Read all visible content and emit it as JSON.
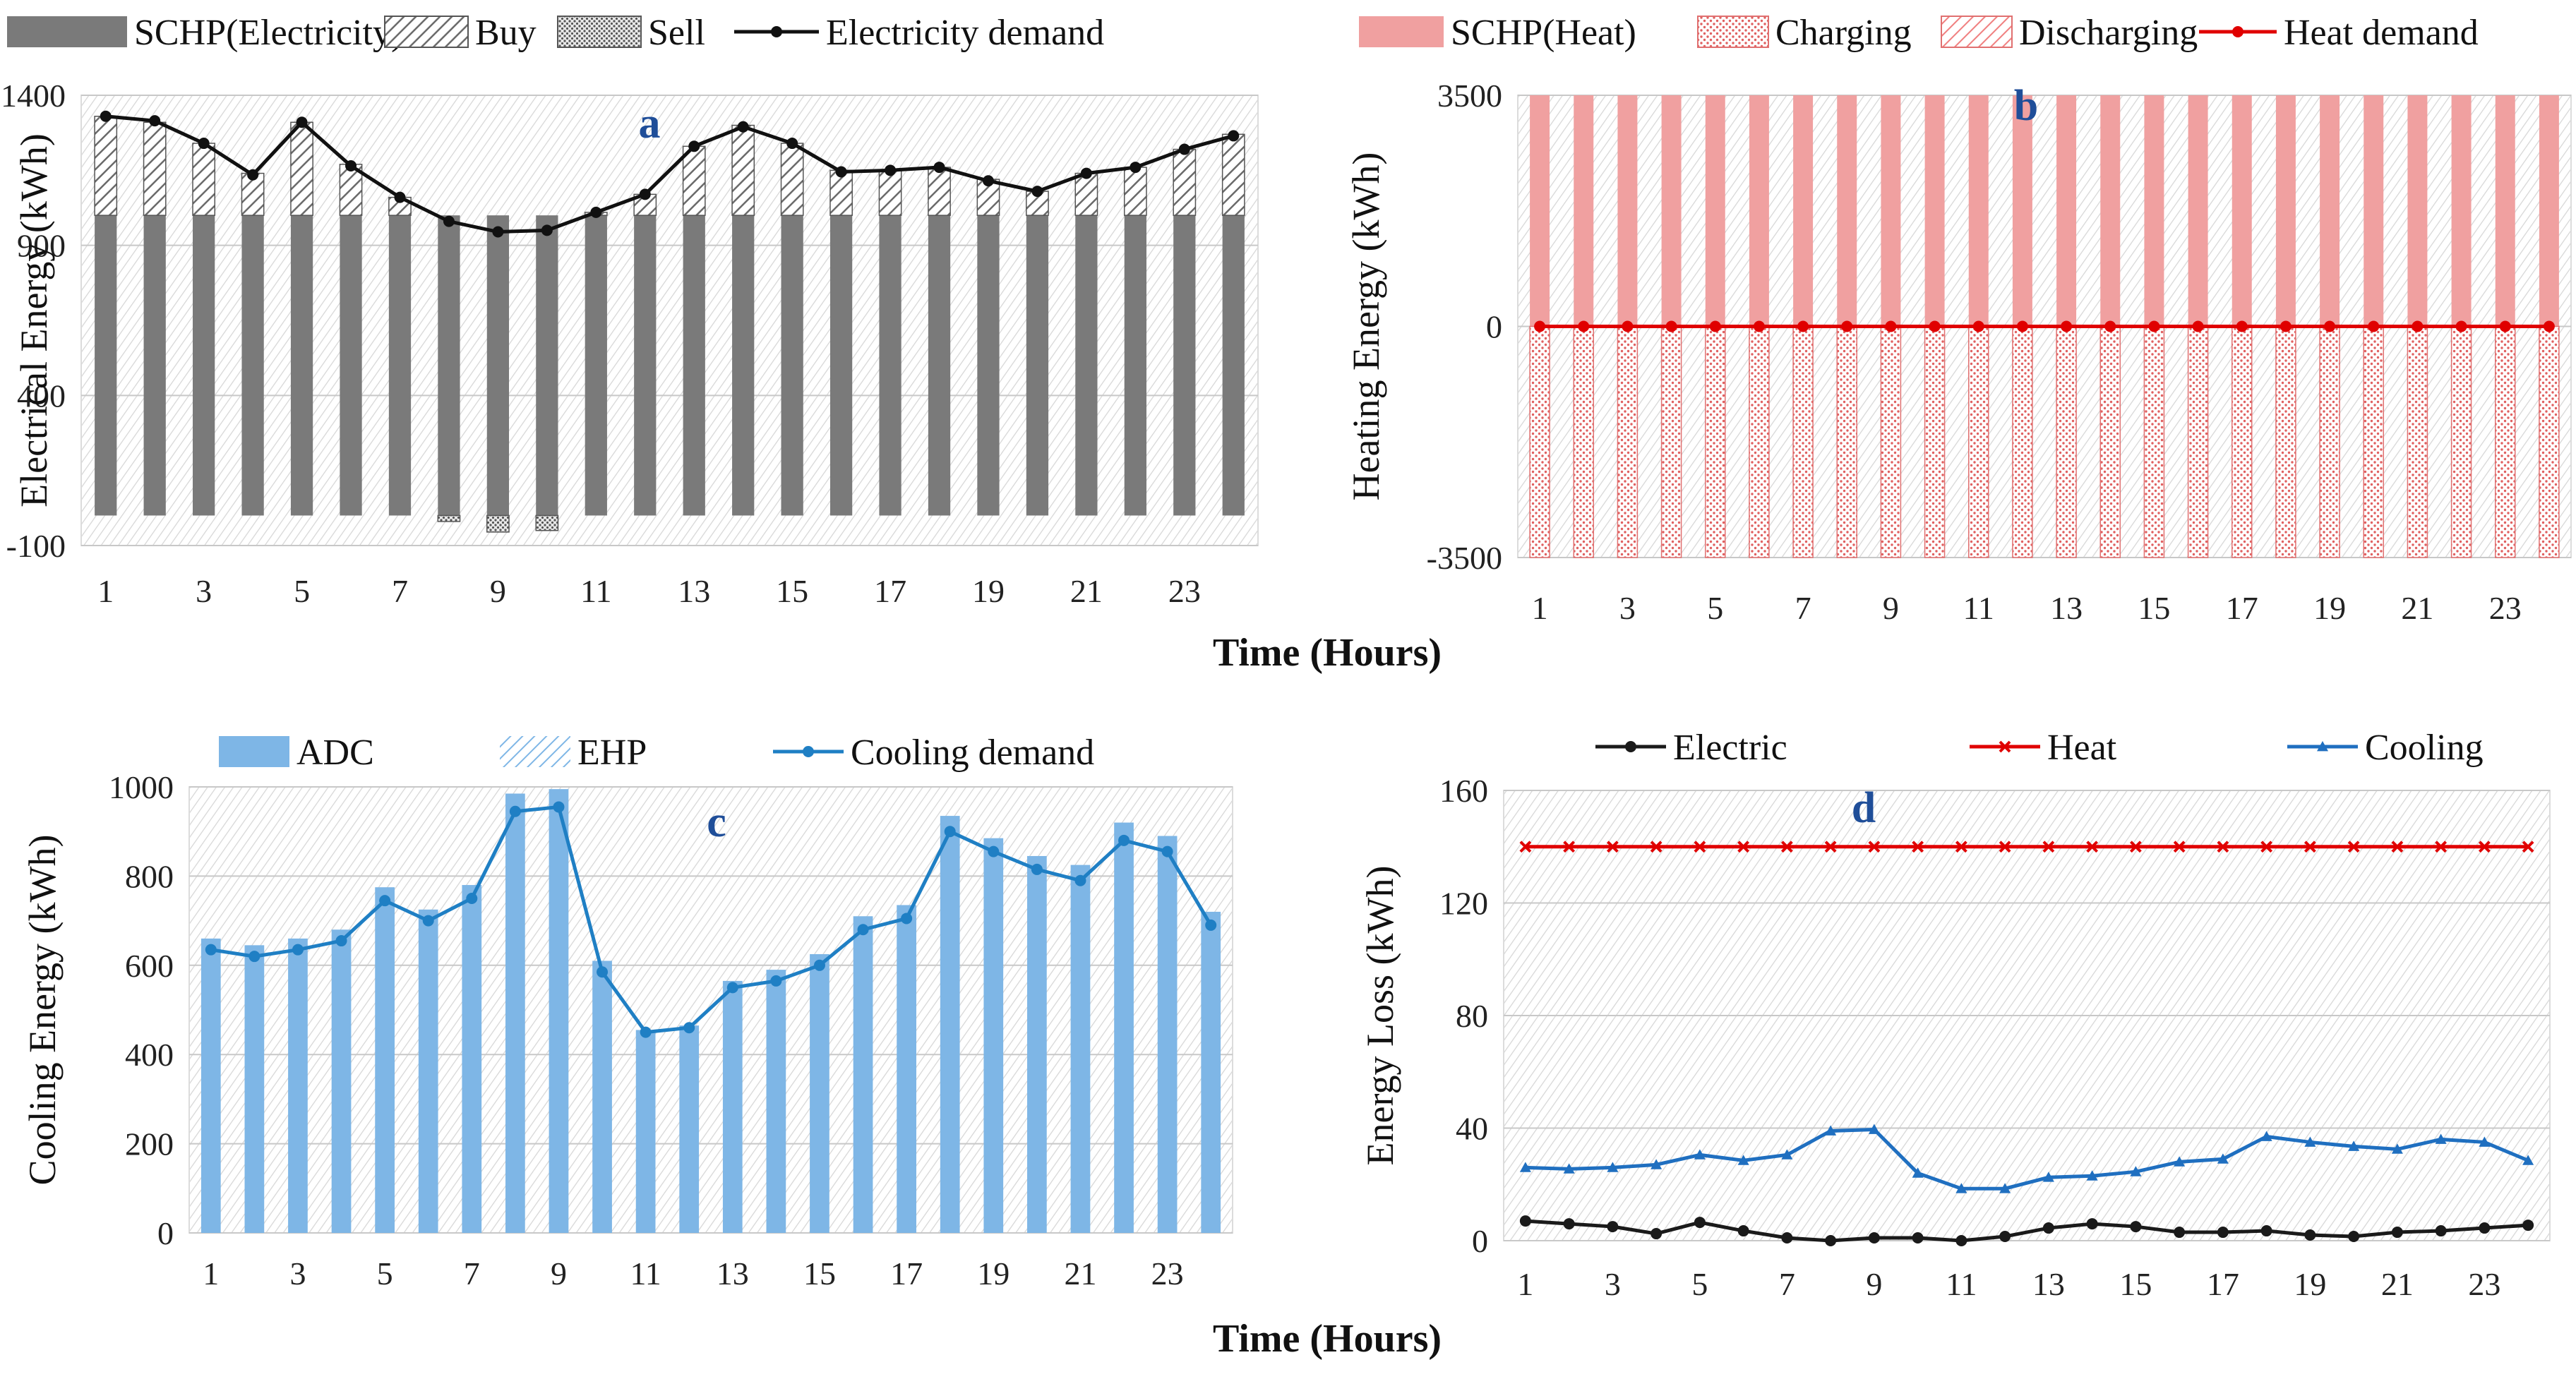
{
  "x_axis_title": "Time (Hours)",
  "chart_data": [
    {
      "panel": "a",
      "type": "bar",
      "stacked": true,
      "ylabel": "Electrical Energy (kWh)",
      "ylim": [
        -100,
        1400
      ],
      "yticks": [
        -100,
        400,
        900,
        1400
      ],
      "x": [
        1,
        2,
        3,
        4,
        5,
        6,
        7,
        8,
        9,
        10,
        11,
        12,
        13,
        14,
        15,
        16,
        17,
        18,
        19,
        20,
        21,
        22,
        23,
        24
      ],
      "xtick_labels": [
        "1",
        "3",
        "5",
        "7",
        "9",
        "11",
        "13",
        "15",
        "17",
        "19",
        "21",
        "23"
      ],
      "series": [
        {
          "name": "SCHP(Electricity)",
          "kind": "bar",
          "color": "#7a7a7a",
          "values": [
            1000,
            1000,
            1000,
            1000,
            1000,
            1000,
            1000,
            1000,
            1000,
            1000,
            1000,
            1000,
            1000,
            1000,
            1000,
            1000,
            1000,
            1000,
            1000,
            1000,
            1000,
            1000,
            1000,
            1000
          ]
        },
        {
          "name": "Buy",
          "kind": "bar",
          "color": "#8c8c8c",
          "values": [
            330,
            310,
            240,
            140,
            310,
            170,
            60,
            0,
            0,
            0,
            10,
            70,
            230,
            300,
            240,
            150,
            150,
            160,
            120,
            80,
            140,
            160,
            220,
            270
          ]
        },
        {
          "name": "Sell",
          "kind": "bar",
          "color": "#9a9a9a",
          "values": [
            0,
            0,
            0,
            0,
            0,
            0,
            0,
            -20,
            -55,
            -50,
            0,
            0,
            0,
            0,
            0,
            0,
            0,
            0,
            0,
            0,
            0,
            0,
            0,
            0
          ]
        },
        {
          "name": "Electricity demand",
          "kind": "line",
          "color": "#111111",
          "values": [
            1330,
            1315,
            1240,
            1135,
            1310,
            1165,
            1060,
            980,
            945,
            950,
            1010,
            1070,
            1230,
            1295,
            1240,
            1145,
            1150,
            1160,
            1115,
            1080,
            1140,
            1160,
            1220,
            1265
          ]
        }
      ],
      "annotation": "a"
    },
    {
      "panel": "b",
      "type": "bar",
      "stacked": true,
      "ylabel": "Heating Energy (kWh)",
      "ylim": [
        -3500,
        3500
      ],
      "yticks": [
        -3500,
        0,
        3500
      ],
      "x": [
        1,
        2,
        3,
        4,
        5,
        6,
        7,
        8,
        9,
        10,
        11,
        12,
        13,
        14,
        15,
        16,
        17,
        18,
        19,
        20,
        21,
        22,
        23,
        24
      ],
      "xtick_labels": [
        "1",
        "3",
        "5",
        "7",
        "9",
        "11",
        "13",
        "15",
        "17",
        "19",
        "21",
        "23"
      ],
      "series": [
        {
          "name": "SCHP(Heat)",
          "kind": "bar",
          "color": "#f0a0a0",
          "values": [
            3500,
            3500,
            3500,
            3500,
            3500,
            3500,
            3500,
            3500,
            3500,
            3500,
            3500,
            3500,
            3500,
            3500,
            3500,
            3500,
            3500,
            3500,
            3500,
            3500,
            3500,
            3500,
            3500,
            3500
          ]
        },
        {
          "name": "Charging",
          "kind": "bar",
          "color": "#f08a8a",
          "values": [
            -3500,
            -3500,
            -3500,
            -3500,
            -3500,
            -3500,
            -3500,
            -3500,
            -3500,
            -3500,
            -3500,
            -3500,
            -3500,
            -3500,
            -3500,
            -3500,
            -3500,
            -3500,
            -3500,
            -3500,
            -3500,
            -3500,
            -3500,
            -3500
          ]
        },
        {
          "name": "Discharging",
          "kind": "bar",
          "color": "#f4a0a0",
          "values": [
            0,
            0,
            0,
            0,
            0,
            0,
            0,
            0,
            0,
            0,
            0,
            0,
            0,
            0,
            0,
            0,
            0,
            0,
            0,
            0,
            0,
            0,
            0,
            0
          ]
        },
        {
          "name": "Heat demand",
          "kind": "line",
          "color": "#e00000",
          "values": [
            0,
            0,
            0,
            0,
            0,
            0,
            0,
            0,
            0,
            0,
            0,
            0,
            0,
            0,
            0,
            0,
            0,
            0,
            0,
            0,
            0,
            0,
            0,
            0
          ]
        }
      ],
      "annotation": "b"
    },
    {
      "panel": "c",
      "type": "bar",
      "stacked": true,
      "ylabel": "Cooling Energy (kWh)",
      "ylim": [
        0,
        1000
      ],
      "yticks": [
        0,
        200,
        400,
        600,
        800,
        1000
      ],
      "x": [
        1,
        2,
        3,
        4,
        5,
        6,
        7,
        8,
        9,
        10,
        11,
        12,
        13,
        14,
        15,
        16,
        17,
        18,
        19,
        20,
        21,
        22,
        23,
        24
      ],
      "xtick_labels": [
        "1",
        "3",
        "5",
        "7",
        "9",
        "11",
        "13",
        "15",
        "17",
        "19",
        "21",
        "23"
      ],
      "series": [
        {
          "name": "ADC",
          "kind": "bar",
          "color": "#7eb6e6",
          "values": [
            660,
            645,
            660,
            680,
            775,
            725,
            780,
            985,
            995,
            610,
            455,
            465,
            565,
            590,
            625,
            710,
            735,
            935,
            885,
            845,
            825,
            920,
            890,
            720
          ]
        },
        {
          "name": "EHP",
          "kind": "bar",
          "color": "#9cc8ee",
          "values": [
            0,
            0,
            0,
            0,
            0,
            0,
            0,
            0,
            0,
            0,
            0,
            0,
            0,
            0,
            0,
            0,
            0,
            0,
            0,
            0,
            0,
            0,
            0,
            0
          ]
        },
        {
          "name": "Cooling demand",
          "kind": "line",
          "color": "#1f7fc4",
          "values": [
            635,
            620,
            635,
            655,
            745,
            700,
            750,
            945,
            955,
            585,
            450,
            460,
            550,
            565,
            600,
            680,
            705,
            900,
            855,
            815,
            790,
            880,
            855,
            690
          ]
        }
      ],
      "annotation": "c"
    },
    {
      "panel": "d",
      "type": "line",
      "ylabel": "Energy Loss (kWh)",
      "ylim": [
        0,
        160
      ],
      "yticks": [
        0,
        40,
        80,
        120,
        160
      ],
      "x": [
        1,
        2,
        3,
        4,
        5,
        6,
        7,
        8,
        9,
        10,
        11,
        12,
        13,
        14,
        15,
        16,
        17,
        18,
        19,
        20,
        21,
        22,
        23,
        24
      ],
      "xtick_labels": [
        "1",
        "3",
        "5",
        "7",
        "9",
        "11",
        "13",
        "15",
        "17",
        "19",
        "21",
        "23"
      ],
      "series": [
        {
          "name": "Electric",
          "kind": "line",
          "color": "#1a1a1a",
          "values": [
            7,
            6,
            5,
            2.5,
            6.5,
            3.5,
            1,
            0,
            1,
            1,
            0,
            1.5,
            4.5,
            6,
            5,
            3,
            3,
            3.5,
            2,
            1.5,
            3,
            3.5,
            4.5,
            5.5
          ]
        },
        {
          "name": "Heat",
          "kind": "line",
          "color": "#e00000",
          "values": [
            140,
            140,
            140,
            140,
            140,
            140,
            140,
            140,
            140,
            140,
            140,
            140,
            140,
            140,
            140,
            140,
            140,
            140,
            140,
            140,
            140,
            140,
            140,
            140
          ]
        },
        {
          "name": "Cooling",
          "kind": "line",
          "color": "#1f6fc0",
          "values": [
            26,
            25.5,
            26,
            27,
            30.5,
            28.5,
            30.5,
            39,
            39.5,
            24,
            18.5,
            18.5,
            22.5,
            23,
            24.5,
            28,
            29,
            37,
            35,
            33.5,
            32.5,
            36,
            35,
            28.5
          ]
        }
      ],
      "annotation": "d"
    }
  ]
}
